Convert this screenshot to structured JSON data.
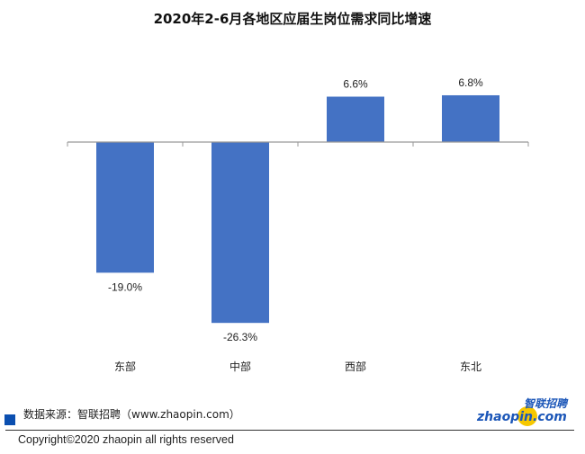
{
  "chart_data": {
    "type": "bar",
    "title": "2020年2-6月各地区应届生岗位需求同比增速",
    "categories": [
      "东部",
      "中部",
      "西部",
      "东北"
    ],
    "values": [
      -19.0,
      -26.3,
      6.6,
      6.8
    ],
    "data_labels": [
      "-19.0%",
      "-26.3%",
      "6.6%",
      "6.8%"
    ],
    "bar_color": "#4472c4",
    "grid": false,
    "legend": "none"
  },
  "footer": {
    "source": "数据来源：智联招聘（www.zhaopin.com）",
    "copyright": "Copyright©2020 zhaopin all rights reserved",
    "logo_cn": "智联招聘",
    "logo_en": "zhaopin.com"
  }
}
